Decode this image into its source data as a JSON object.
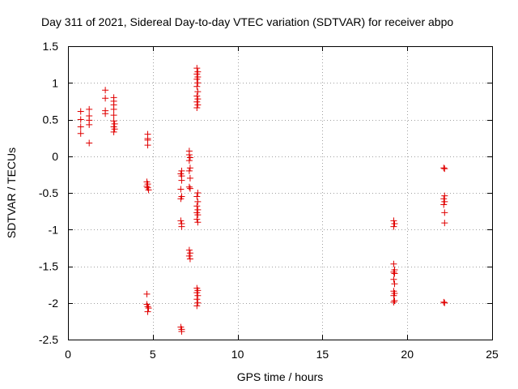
{
  "chart_data": {
    "type": "scatter",
    "title": "Day 311 of 2021, Sidereal Day-to-day VTEC variation (SDTVAR) for receiver abpo",
    "xlabel": "GPS time / hours",
    "ylabel": "SDTVAR / TECUs",
    "xlim": [
      0,
      25
    ],
    "ylim": [
      -2.5,
      1.5
    ],
    "xticks": [
      0,
      5,
      10,
      15,
      20,
      25
    ],
    "yticks": [
      -2.5,
      -2,
      -1.5,
      -1,
      -0.5,
      0,
      0.5,
      1,
      1.5
    ],
    "xtick_labels": [
      "0",
      "5",
      "10",
      "15",
      "20",
      "25"
    ],
    "ytick_labels": [
      "-2.5",
      "-2",
      "-1.5",
      "-1",
      "-0.5",
      "0",
      "0.5",
      "1",
      "1.5"
    ],
    "grid": true,
    "marker": "plus",
    "color": "#e00000",
    "series": [
      {
        "name": "SDTVAR",
        "points": [
          [
            0.75,
            0.61
          ],
          [
            0.75,
            0.5
          ],
          [
            0.75,
            0.4
          ],
          [
            0.75,
            0.31
          ],
          [
            1.25,
            0.64
          ],
          [
            1.25,
            0.55
          ],
          [
            1.25,
            0.49
          ],
          [
            1.25,
            0.43
          ],
          [
            1.25,
            0.18
          ],
          [
            2.2,
            0.9
          ],
          [
            2.2,
            0.79
          ],
          [
            2.2,
            0.62
          ],
          [
            2.2,
            0.58
          ],
          [
            2.7,
            0.8
          ],
          [
            2.7,
            0.75
          ],
          [
            2.7,
            0.7
          ],
          [
            2.7,
            0.64
          ],
          [
            2.7,
            0.56
          ],
          [
            2.7,
            0.48
          ],
          [
            2.75,
            0.44
          ],
          [
            2.7,
            0.4
          ],
          [
            2.75,
            0.37
          ],
          [
            2.7,
            0.33
          ],
          [
            4.7,
            0.3
          ],
          [
            4.7,
            0.24
          ],
          [
            4.7,
            0.22
          ],
          [
            4.7,
            0.15
          ],
          [
            4.65,
            -0.35
          ],
          [
            4.7,
            -0.38
          ],
          [
            4.65,
            -0.41
          ],
          [
            4.7,
            -0.43
          ],
          [
            4.75,
            -0.46
          ],
          [
            4.65,
            -1.88
          ],
          [
            4.65,
            -2.02
          ],
          [
            4.7,
            -2.05
          ],
          [
            4.75,
            -2.07
          ],
          [
            4.7,
            -2.12
          ],
          [
            6.7,
            -0.2
          ],
          [
            6.65,
            -0.24
          ],
          [
            6.7,
            -0.27
          ],
          [
            6.7,
            -0.33
          ],
          [
            6.65,
            -0.45
          ],
          [
            6.7,
            -0.55
          ],
          [
            6.65,
            -0.58
          ],
          [
            6.65,
            -0.88
          ],
          [
            6.7,
            -0.92
          ],
          [
            6.7,
            -0.96
          ],
          [
            6.65,
            -2.33
          ],
          [
            6.7,
            -2.36
          ],
          [
            6.7,
            -2.39
          ],
          [
            7.15,
            0.07
          ],
          [
            7.15,
            0.02
          ],
          [
            7.2,
            -0.02
          ],
          [
            7.15,
            -0.06
          ],
          [
            7.2,
            -0.16
          ],
          [
            7.15,
            -0.2
          ],
          [
            7.2,
            -0.3
          ],
          [
            7.15,
            -0.42
          ],
          [
            7.2,
            -0.44
          ],
          [
            7.15,
            -1.28
          ],
          [
            7.2,
            -1.32
          ],
          [
            7.15,
            -1.36
          ],
          [
            7.2,
            -1.4
          ],
          [
            7.6,
            1.2
          ],
          [
            7.65,
            1.15
          ],
          [
            7.6,
            1.12
          ],
          [
            7.65,
            1.08
          ],
          [
            7.6,
            1.05
          ],
          [
            7.65,
            1.0
          ],
          [
            7.6,
            0.95
          ],
          [
            7.65,
            0.88
          ],
          [
            7.6,
            0.82
          ],
          [
            7.65,
            0.78
          ],
          [
            7.6,
            0.74
          ],
          [
            7.65,
            0.7
          ],
          [
            7.6,
            0.66
          ],
          [
            7.65,
            -0.5
          ],
          [
            7.6,
            -0.55
          ],
          [
            7.65,
            -0.62
          ],
          [
            7.6,
            -0.68
          ],
          [
            7.65,
            -0.73
          ],
          [
            7.6,
            -0.77
          ],
          [
            7.65,
            -0.8
          ],
          [
            7.6,
            -0.86
          ],
          [
            7.65,
            -0.9
          ],
          [
            7.6,
            -1.8
          ],
          [
            7.65,
            -1.83
          ],
          [
            7.6,
            -1.86
          ],
          [
            7.65,
            -1.9
          ],
          [
            7.6,
            -1.95
          ],
          [
            7.65,
            -2.0
          ],
          [
            7.6,
            -2.04
          ],
          [
            19.2,
            -0.88
          ],
          [
            19.25,
            -0.92
          ],
          [
            19.2,
            -0.96
          ],
          [
            19.2,
            -1.47
          ],
          [
            19.25,
            -1.55
          ],
          [
            19.2,
            -1.58
          ],
          [
            19.25,
            -1.6
          ],
          [
            19.2,
            -1.68
          ],
          [
            19.25,
            -1.74
          ],
          [
            19.2,
            -1.84
          ],
          [
            19.25,
            -1.87
          ],
          [
            19.2,
            -1.9
          ],
          [
            19.25,
            -1.97
          ],
          [
            19.2,
            -1.99
          ],
          [
            22.15,
            -0.16
          ],
          [
            22.2,
            -0.17
          ],
          [
            22.2,
            -0.54
          ],
          [
            22.15,
            -0.58
          ],
          [
            22.2,
            -0.62
          ],
          [
            22.15,
            -0.66
          ],
          [
            22.2,
            -0.77
          ],
          [
            22.2,
            -0.91
          ],
          [
            22.15,
            -1.99
          ],
          [
            22.2,
            -2.0
          ]
        ]
      }
    ]
  }
}
